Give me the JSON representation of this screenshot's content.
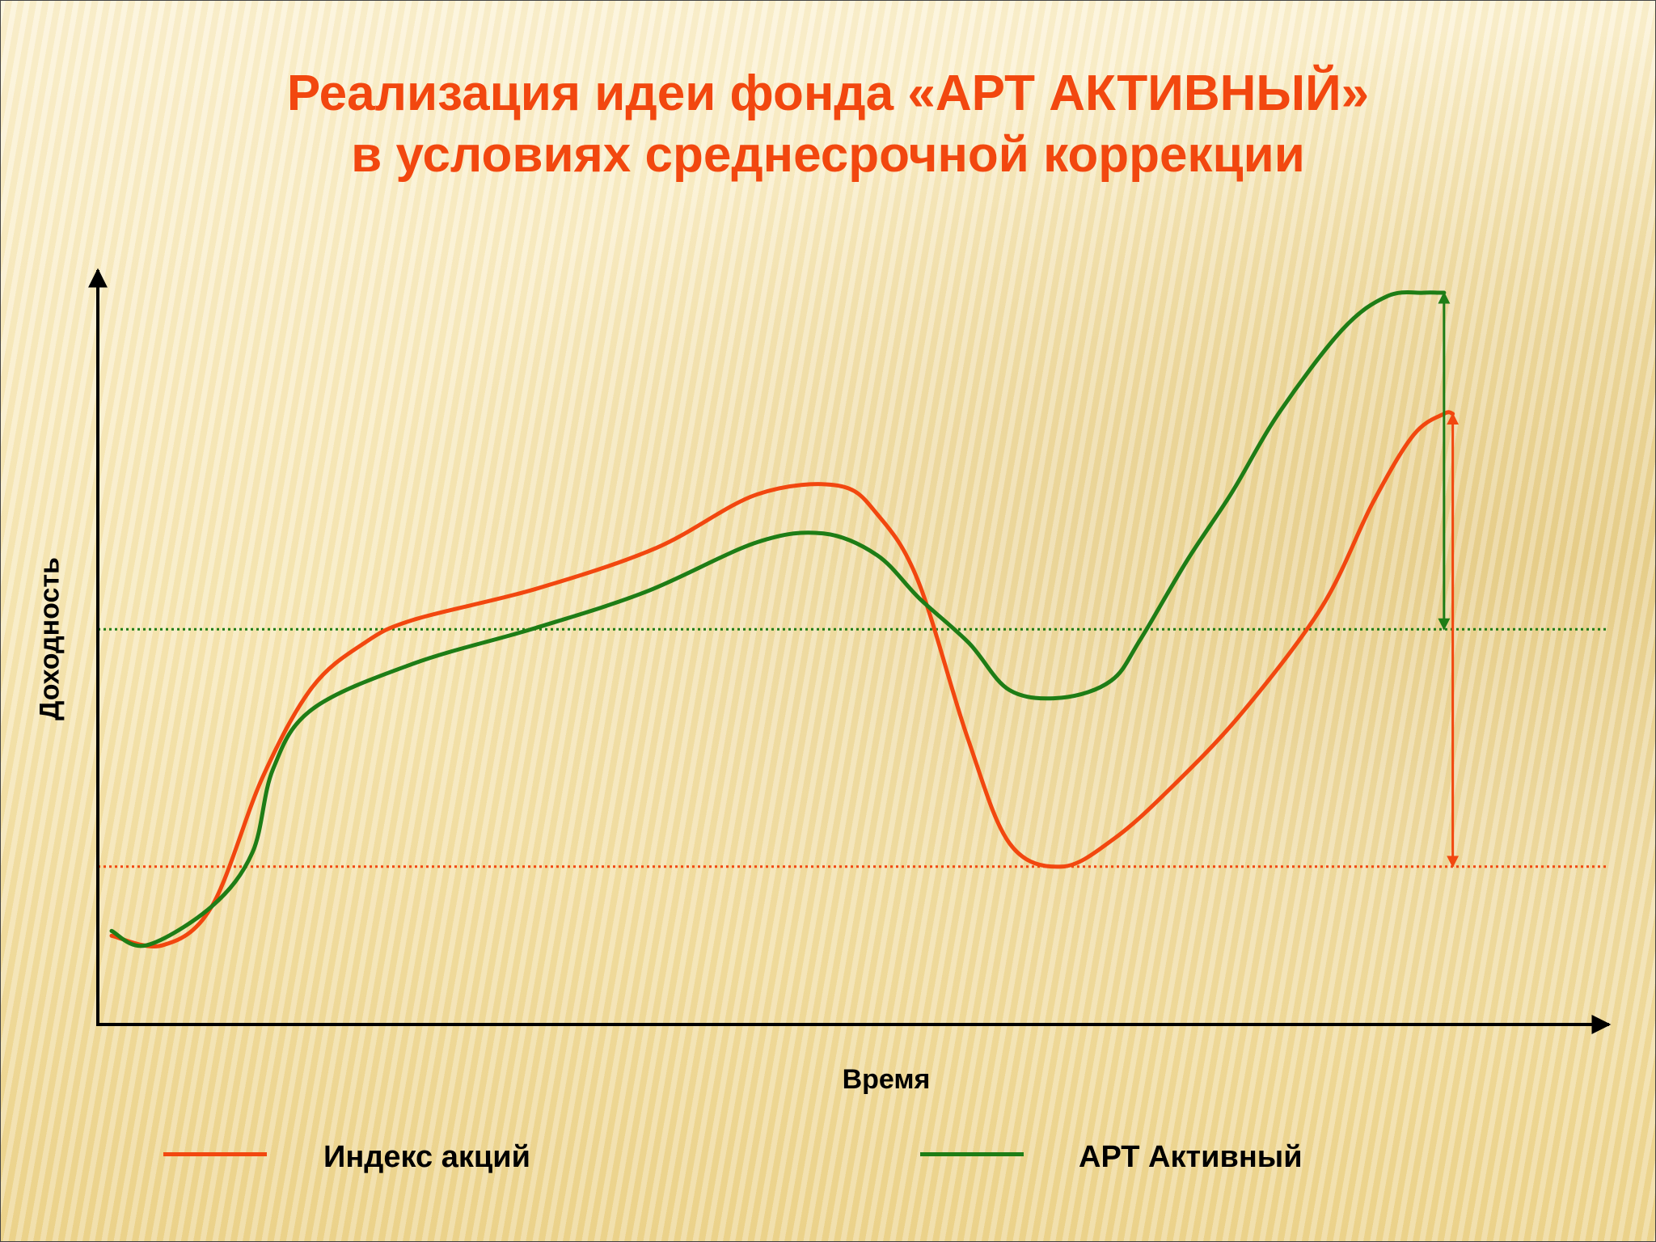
{
  "title": {
    "line1": "Реализация идеи фонда «АРТ АКТИВНЫЙ»",
    "line2": "в условиях среднесрочной коррекции"
  },
  "chart_data": {
    "type": "line",
    "title": "Реализация идеи фонда «АРТ АКТИВНЫЙ» в условиях среднесрочной коррекции",
    "xlabel": "Время",
    "ylabel": "Доходность",
    "xlim": [
      0,
      100
    ],
    "ylim": [
      0,
      100
    ],
    "grid": false,
    "legend_position": "bottom",
    "series": [
      {
        "name": "Индекс акций",
        "color": "#f2470f",
        "x": [
          0,
          3.5,
          6.9,
          10.4,
          13.8,
          17.4,
          20.8,
          29.2,
          37.5,
          44.4,
          50.0,
          52.7,
          55.5,
          58.9,
          61.8,
          65.4,
          69.0,
          72.9,
          77.8,
          83.3,
          86.8,
          89.6,
          91.7,
          92.3
        ],
        "values": [
          6,
          4.6,
          10.3,
          29.2,
          42.3,
          48.8,
          52.2,
          56.7,
          62.7,
          70.5,
          71.8,
          67.6,
          57.9,
          35.0,
          19.5,
          16.1,
          20.2,
          27.6,
          38.6,
          54.1,
          69.3,
          79.2,
          82.3,
          82.3
        ]
      },
      {
        "name": "АРТ Активный",
        "color": "#1e7d16",
        "x": [
          0,
          2.4,
          6.9,
          9.7,
          11.1,
          13.8,
          20.8,
          29.2,
          36.8,
          44.4,
          49.0,
          52.7,
          55.6,
          59.0,
          61.8,
          65.4,
          68.8,
          70.8,
          74.0,
          77.1,
          80.3,
          84.7,
          87.8,
          90.3,
          91.3,
          91.7
        ],
        "values": [
          6.7,
          4.6,
          10.3,
          18.2,
          30.3,
          39.1,
          45.8,
          51.0,
          56.3,
          63.5,
          64.8,
          61.6,
          55.3,
          48.8,
          41.9,
          40.8,
          43.3,
          49.3,
          60.8,
          70.8,
          82.3,
          94.6,
          99.5,
          100,
          100,
          100
        ]
      }
    ],
    "reference_lines": [
      {
        "series": "Индекс акций",
        "color": "#f2470f",
        "style": "dotted",
        "y": 16.1
      },
      {
        "series": "АРТ Активный",
        "color": "#1e7d16",
        "style": "dotted",
        "y": 50.8
      }
    ],
    "range_arrows": [
      {
        "series": "Индекс акций",
        "color": "#f2470f",
        "x": 92.3,
        "from": 16.1,
        "to": 82.3
      },
      {
        "series": "АРТ Активный",
        "color": "#1e7d16",
        "x": 91.7,
        "from": 50.8,
        "to": 100
      }
    ]
  },
  "legend": {
    "items": [
      {
        "label": "Индекс акций",
        "color": "#f2470f"
      },
      {
        "label": "АРТ Активный",
        "color": "#1e7d16"
      }
    ]
  }
}
